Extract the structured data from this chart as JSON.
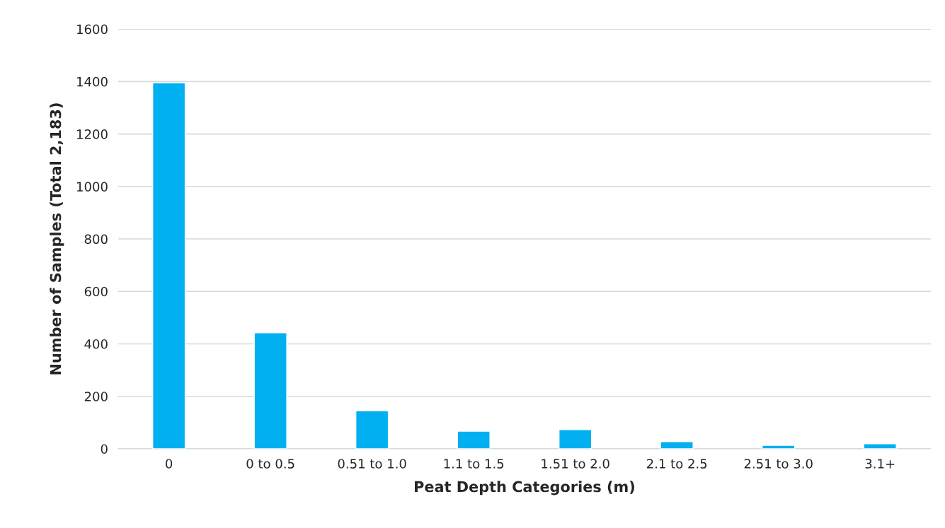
{
  "chart_data": {
    "type": "bar",
    "xlabel": "Peat Depth Categories (m)",
    "ylabel": "Number of Samples (Total 2,183)",
    "categories": [
      "0",
      "0 to 0.5",
      "0.51 to 1.0",
      "1.1 to 1.5",
      "1.51 to 2.0",
      "2.1 to 2.5",
      "2.51 to 3.0",
      "3.1+"
    ],
    "values": [
      1395,
      442,
      145,
      67,
      73,
      27,
      13,
      19
    ],
    "color": "#00b0f0",
    "ylim": [
      0,
      1600
    ],
    "yticks": [
      0,
      200,
      400,
      600,
      800,
      1000,
      1200,
      1400,
      1600
    ],
    "grid": "y",
    "legend": false
  }
}
